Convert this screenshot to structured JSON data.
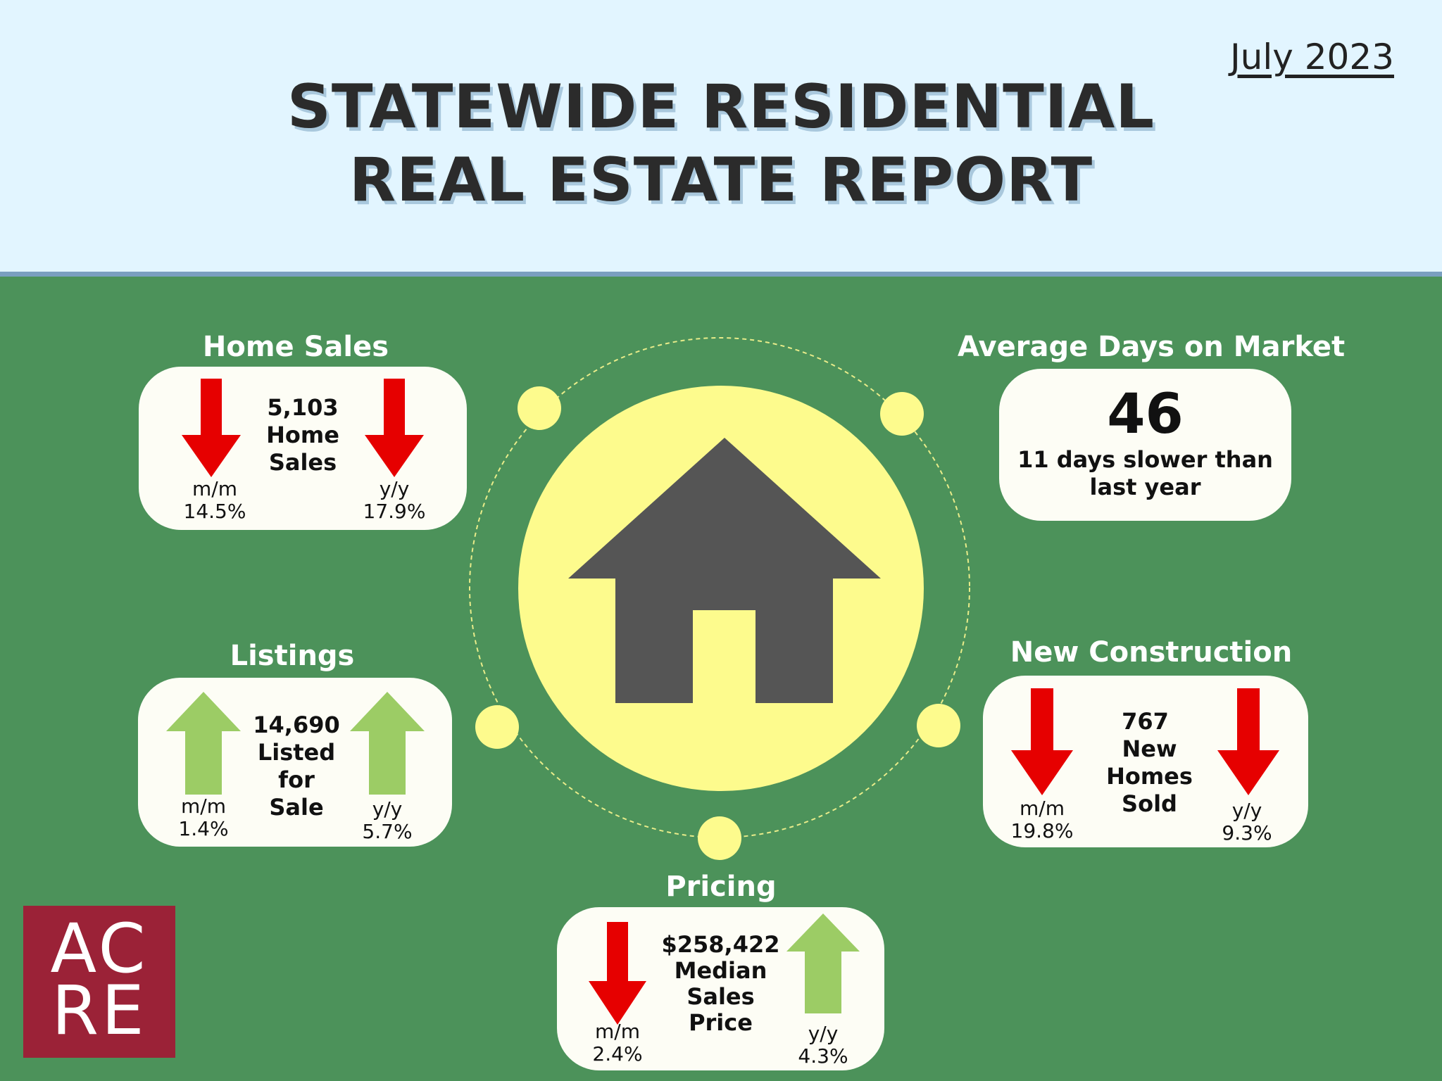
{
  "header": {
    "date": "July 2023",
    "title_line1": "STATEWIDE RESIDENTIAL",
    "title_line2": "REAL ESTATE REPORT"
  },
  "home_sales": {
    "label": "Home Sales",
    "value": "5,103",
    "line2": "Home",
    "line3": "Sales",
    "mm_label": "m/m",
    "mm_value": "14.5%",
    "mm_direction": "down",
    "yy_label": "y/y",
    "yy_value": "17.9%",
    "yy_direction": "down"
  },
  "days_on_market": {
    "label": "Average Days on Market",
    "value": "46",
    "line1": "11 days slower than",
    "line2": "last year"
  },
  "listings": {
    "label": "Listings",
    "value": "14,690",
    "line2": "Listed",
    "line3": "for",
    "line4": "Sale",
    "mm_label": "m/m",
    "mm_value": "1.4%",
    "mm_direction": "up",
    "yy_label": "y/y",
    "yy_value": "5.7%",
    "yy_direction": "up"
  },
  "new_construction": {
    "label": "New Construction",
    "value": "767",
    "line2": "New",
    "line3": "Homes",
    "line4": "Sold",
    "mm_label": "m/m",
    "mm_value": "19.8%",
    "mm_direction": "down",
    "yy_label": "y/y",
    "yy_value": "9.3%",
    "yy_direction": "down"
  },
  "pricing": {
    "label": "Pricing",
    "value": "$258,422",
    "line2": "Median",
    "line3": "Sales",
    "line4": "Price",
    "mm_label": "m/m",
    "mm_value": "2.4%",
    "mm_direction": "down",
    "yy_label": "y/y",
    "yy_value": "4.3%",
    "yy_direction": "up"
  },
  "logo": {
    "line1": "AC",
    "line2": "RE"
  },
  "colors": {
    "header_bg": "#e2f5ff",
    "main_bg": "#4c925a",
    "down_arrow": "#e60000",
    "up_arrow": "#9ccc65",
    "circle_yellow": "#fdfb8d",
    "house": "#555555",
    "logo_bg": "#9b2237"
  }
}
